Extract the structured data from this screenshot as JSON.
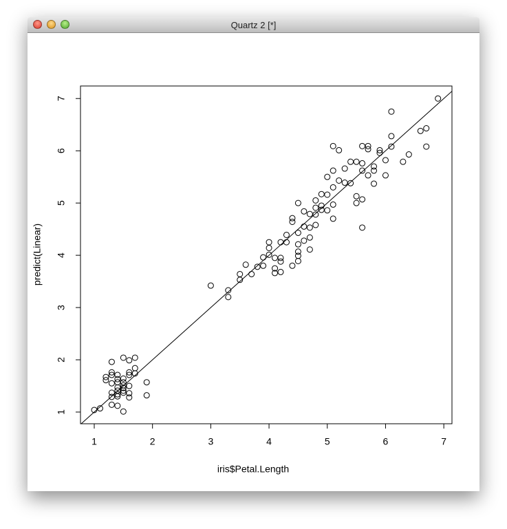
{
  "window_title": "Quartz 2 [*]",
  "chart_data": {
    "type": "scatter",
    "xlabel": "iris$Petal.Length",
    "ylabel": "predict(Linear)",
    "xlim": [
      0.764,
      7.14
    ],
    "ylim": [
      0.776,
      7.24
    ],
    "xticks": [
      1,
      2,
      3,
      4,
      5,
      6,
      7
    ],
    "yticks": [
      1,
      2,
      3,
      4,
      5,
      6,
      7
    ],
    "color": "#000000",
    "abline": {
      "intercept": 0,
      "slope": 1
    },
    "x": [
      1.0,
      1.1,
      1.2,
      1.2,
      1.3,
      1.3,
      1.3,
      1.3,
      1.3,
      1.3,
      1.3,
      1.4,
      1.4,
      1.4,
      1.4,
      1.4,
      1.4,
      1.4,
      1.4,
      1.5,
      1.5,
      1.5,
      1.5,
      1.5,
      1.5,
      1.5,
      1.5,
      1.6,
      1.6,
      1.6,
      1.6,
      1.6,
      1.6,
      1.7,
      1.7,
      1.7,
      1.9,
      1.9,
      3.0,
      3.3,
      3.3,
      3.5,
      3.5,
      3.6,
      3.7,
      3.8,
      3.9,
      3.9,
      4.0,
      4.0,
      4.0,
      4.1,
      4.1,
      4.1,
      4.2,
      4.2,
      4.2,
      4.2,
      4.3,
      4.3,
      4.4,
      4.4,
      4.4,
      4.5,
      4.5,
      4.5,
      4.5,
      4.5,
      4.5,
      4.6,
      4.6,
      4.6,
      4.7,
      4.7,
      4.7,
      4.7,
      4.8,
      4.8,
      4.8,
      4.8,
      4.9,
      4.9,
      4.9,
      5.0,
      5.0,
      5.0,
      5.1,
      5.1,
      5.1,
      5.1,
      5.1,
      5.2,
      5.2,
      5.3,
      5.3,
      5.4,
      5.4,
      5.5,
      5.5,
      5.5,
      5.6,
      5.6,
      5.6,
      5.6,
      5.6,
      5.7,
      5.7,
      5.7,
      5.8,
      5.8,
      5.8,
      5.9,
      5.9,
      6.0,
      6.0,
      6.1,
      6.1,
      6.1,
      6.3,
      6.4,
      6.6,
      6.7,
      6.7,
      6.9
    ],
    "y": [
      1.04,
      1.07,
      1.67,
      1.61,
      1.96,
      1.76,
      1.71,
      1.55,
      1.37,
      1.29,
      1.14,
      1.71,
      1.63,
      1.57,
      1.47,
      1.41,
      1.34,
      1.3,
      1.12,
      2.04,
      1.64,
      1.57,
      1.51,
      1.46,
      1.41,
      1.37,
      1.01,
      1.99,
      1.76,
      1.71,
      1.5,
      1.36,
      1.28,
      2.04,
      1.84,
      1.74,
      1.57,
      1.32,
      3.42,
      3.33,
      3.2,
      3.64,
      3.53,
      3.82,
      3.64,
      3.78,
      3.96,
      3.8,
      4.25,
      4.14,
      4.01,
      3.95,
      3.75,
      3.66,
      4.25,
      3.95,
      3.88,
      3.68,
      4.39,
      4.25,
      4.71,
      4.64,
      3.8,
      5.0,
      4.43,
      4.21,
      4.07,
      3.99,
      3.89,
      4.84,
      4.55,
      4.28,
      4.79,
      4.53,
      4.34,
      4.11,
      5.05,
      4.91,
      4.78,
      4.58,
      5.17,
      4.95,
      4.87,
      5.5,
      5.16,
      4.86,
      6.09,
      5.62,
      5.3,
      4.97,
      4.7,
      6.01,
      5.43,
      5.66,
      5.39,
      5.79,
      5.38,
      5.79,
      5.13,
      5.0,
      6.09,
      5.76,
      5.62,
      5.07,
      4.53,
      6.09,
      6.03,
      5.53,
      5.7,
      5.62,
      5.37,
      6.01,
      5.96,
      5.82,
      5.53,
      6.75,
      6.28,
      6.08,
      5.79,
      5.93,
      6.38,
      6.43,
      6.08,
      7.0
    ]
  }
}
